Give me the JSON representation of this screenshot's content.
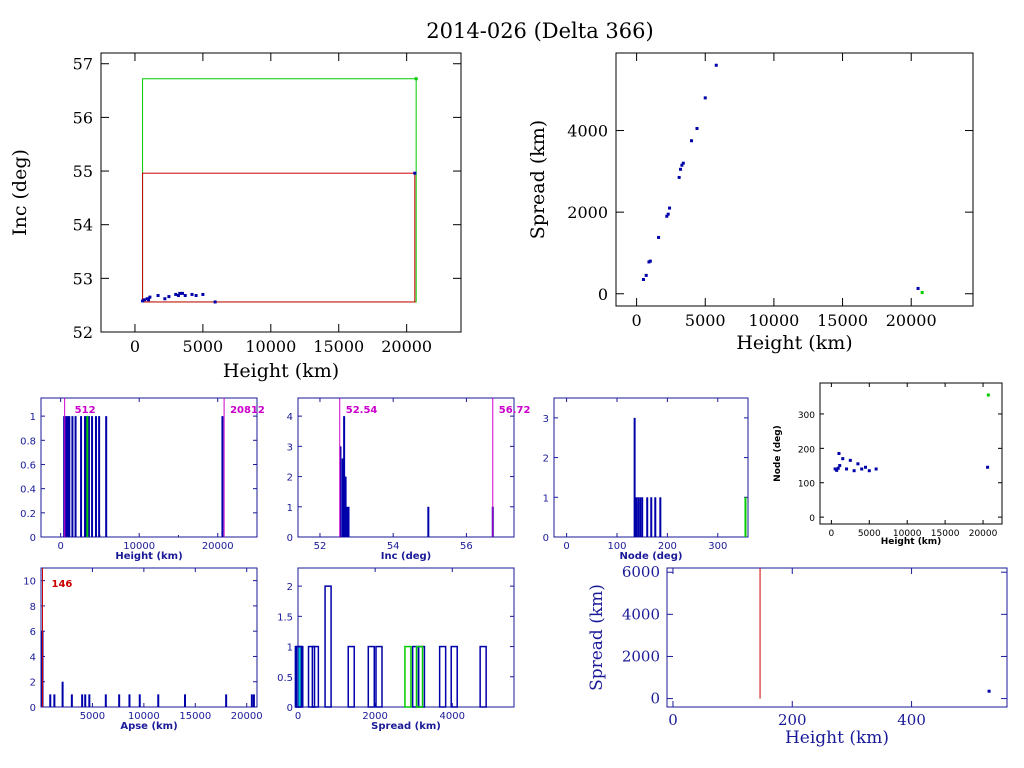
{
  "title": "2014-026 (Delta 366)",
  "colors": {
    "blue": "#0000aa",
    "red": "#cc0000",
    "green": "#00cc00",
    "magenta": "#cc00cc",
    "cyan": "#00cccc",
    "axis_blue": "#1a1a99"
  },
  "chart_data": [
    {
      "id": "inc_vs_height",
      "type": "scatter",
      "xlabel": "Height (km)",
      "ylabel": "Inc (deg)",
      "xlim": [
        -2500,
        24000
      ],
      "ylim": [
        52,
        57.2
      ],
      "xticks": [
        0,
        5000,
        10000,
        15000,
        20000
      ],
      "yticks": [
        52,
        53,
        54,
        55,
        56,
        57
      ],
      "points": [
        [
          560,
          52.58
        ],
        [
          700,
          52.6
        ],
        [
          900,
          52.62
        ],
        [
          1000,
          52.6
        ],
        [
          1100,
          52.65
        ],
        [
          1700,
          52.68
        ],
        [
          2200,
          52.62
        ],
        [
          2500,
          52.66
        ],
        [
          3000,
          52.7
        ],
        [
          3200,
          52.68
        ],
        [
          3300,
          52.72
        ],
        [
          3500,
          52.72
        ],
        [
          3700,
          52.68
        ],
        [
          4200,
          52.7
        ],
        [
          4500,
          52.68
        ],
        [
          5000,
          52.7
        ],
        [
          5900,
          52.56
        ],
        [
          20600,
          54.96
        ]
      ],
      "green_points": [
        [
          20700,
          56.72
        ]
      ],
      "red_box": {
        "x": [
          560,
          20600
        ],
        "y": [
          52.56,
          54.96
        ]
      },
      "green_box": {
        "x": [
          560,
          20700
        ],
        "y": [
          52.56,
          56.72
        ]
      }
    },
    {
      "id": "spread_vs_height",
      "type": "scatter",
      "xlabel": "Height (km)",
      "ylabel": "Spread (km)",
      "xlim": [
        -1500,
        24500
      ],
      "ylim": [
        -300,
        5900
      ],
      "xticks": [
        0,
        5000,
        10000,
        15000,
        20000
      ],
      "yticks": [
        0,
        2000,
        4000
      ],
      "points": [
        [
          500,
          350
        ],
        [
          700,
          450
        ],
        [
          900,
          780
        ],
        [
          1000,
          800
        ],
        [
          1600,
          1380
        ],
        [
          2200,
          1900
        ],
        [
          2300,
          1950
        ],
        [
          2400,
          2100
        ],
        [
          3100,
          2850
        ],
        [
          3200,
          3050
        ],
        [
          3300,
          3150
        ],
        [
          3400,
          3200
        ],
        [
          4000,
          3750
        ],
        [
          4400,
          4050
        ],
        [
          5000,
          4800
        ],
        [
          5800,
          5600
        ],
        [
          20500,
          130
        ]
      ],
      "green_points": [
        [
          20800,
          30
        ]
      ]
    },
    {
      "id": "height_hist",
      "type": "bar",
      "xlabel": "Height (km)",
      "xlim": [
        -2500,
        25000
      ],
      "ylim": [
        0,
        1.15
      ],
      "xticks": [
        0,
        10000,
        20000
      ],
      "xticks_minor": [
        5000,
        15000
      ],
      "yticks": [
        0,
        0.2,
        0.4,
        0.6,
        0.8,
        1
      ],
      "blue_bars": [
        450,
        700,
        900,
        1100,
        1500,
        1900,
        2600,
        3100,
        3300,
        3600,
        4000,
        4500,
        4900,
        5800,
        20600
      ],
      "green_bars": [
        3400
      ],
      "markers": [
        {
          "x": 512,
          "label": "512",
          "color": "#cc00cc"
        },
        {
          "x": 20812,
          "label": "20812",
          "color": "#cc00cc"
        }
      ]
    },
    {
      "id": "inc_hist",
      "type": "bar",
      "xlabel": "Inc (deg)",
      "xlim": [
        51.4,
        57.3
      ],
      "ylim": [
        0,
        4.6
      ],
      "xticks": [
        52,
        54,
        56
      ],
      "yticks": [
        0,
        1,
        2,
        3,
        4
      ],
      "bars": [
        {
          "x": 52.56,
          "h": 3
        },
        {
          "x": 52.62,
          "h": 2.6
        },
        {
          "x": 52.66,
          "h": 4
        },
        {
          "x": 52.7,
          "h": 2
        },
        {
          "x": 52.74,
          "h": 1
        },
        {
          "x": 52.78,
          "h": 1
        },
        {
          "x": 54.96,
          "h": 1
        },
        {
          "x": 56.72,
          "h": 1
        }
      ],
      "markers": [
        {
          "x": 52.54,
          "label": "52.54",
          "color": "#cc00cc"
        },
        {
          "x": 56.72,
          "label": "56.72",
          "color": "#cc00cc"
        }
      ]
    },
    {
      "id": "node_hist",
      "type": "bar",
      "xlabel": "Node (deg)",
      "xlim": [
        -25,
        360
      ],
      "ylim": [
        0,
        3.5
      ],
      "xticks": [
        0,
        100,
        200,
        300
      ],
      "yticks": [
        0,
        1,
        2,
        3
      ],
      "bars": [
        {
          "x": 135,
          "h": 3
        },
        {
          "x": 138,
          "h": 1
        },
        {
          "x": 142,
          "h": 1
        },
        {
          "x": 146,
          "h": 1
        },
        {
          "x": 150,
          "h": 1
        },
        {
          "x": 160,
          "h": 1
        },
        {
          "x": 168,
          "h": 1
        },
        {
          "x": 176,
          "h": 1
        },
        {
          "x": 186,
          "h": 1
        }
      ],
      "green_bars": [
        {
          "x": 355,
          "h": 1
        }
      ]
    },
    {
      "id": "node_vs_height",
      "type": "scatter",
      "xlabel": "Height (km)",
      "ylabel": "Node (deg)",
      "xlim": [
        -1500,
        22500
      ],
      "ylim": [
        -20,
        390
      ],
      "xticks": [
        0,
        5000,
        10000,
        15000,
        20000
      ],
      "yticks": [
        0,
        100,
        200,
        300
      ],
      "points": [
        [
          500,
          140
        ],
        [
          700,
          136
        ],
        [
          900,
          142
        ],
        [
          1000,
          185
        ],
        [
          1100,
          150
        ],
        [
          1500,
          170
        ],
        [
          2000,
          140
        ],
        [
          2500,
          165
        ],
        [
          3000,
          135
        ],
        [
          3500,
          155
        ],
        [
          4000,
          140
        ],
        [
          4500,
          145
        ],
        [
          5000,
          135
        ],
        [
          5900,
          140
        ],
        [
          20600,
          145
        ]
      ],
      "green_points": [
        [
          20700,
          355
        ]
      ]
    },
    {
      "id": "apse_hist",
      "type": "bar",
      "xlabel": "Apse (km)",
      "xlim": [
        0,
        21000
      ],
      "ylim": [
        0,
        11
      ],
      "xticks": [
        5000,
        10000,
        15000,
        20000
      ],
      "yticks": [
        0,
        2,
        4,
        6,
        8,
        10
      ],
      "bars": [
        {
          "x": 146,
          "h": 6
        },
        {
          "x": 900,
          "h": 1
        },
        {
          "x": 1300,
          "h": 1
        },
        {
          "x": 2100,
          "h": 2
        },
        {
          "x": 3000,
          "h": 1
        },
        {
          "x": 4000,
          "h": 1
        },
        {
          "x": 4300,
          "h": 1
        },
        {
          "x": 4700,
          "h": 1
        },
        {
          "x": 6300,
          "h": 1
        },
        {
          "x": 7600,
          "h": 1
        },
        {
          "x": 8600,
          "h": 1
        },
        {
          "x": 9600,
          "h": 1
        },
        {
          "x": 11400,
          "h": 1
        },
        {
          "x": 14000,
          "h": 1
        },
        {
          "x": 18000,
          "h": 1
        },
        {
          "x": 20500,
          "h": 1
        },
        {
          "x": 20700,
          "h": 1
        }
      ],
      "markers": [
        {
          "x": 146,
          "label": "146",
          "color": "#cc0000"
        }
      ]
    },
    {
      "id": "spread_hist",
      "type": "bar",
      "xlabel": "Spread (km)",
      "xlim": [
        0,
        5600
      ],
      "ylim": [
        0,
        2.3
      ],
      "xticks": [
        0,
        2000,
        4000
      ],
      "yticks": [
        0,
        0.5,
        1,
        1.5,
        2
      ],
      "bars": [
        {
          "x": 10,
          "h": 1
        },
        {
          "x": 40,
          "h": 1
        },
        {
          "x": 350,
          "h": 1
        },
        {
          "x": 450,
          "h": 1
        },
        {
          "x": 780,
          "h": 2
        },
        {
          "x": 1380,
          "h": 1
        },
        {
          "x": 1900,
          "h": 1
        },
        {
          "x": 2100,
          "h": 1
        },
        {
          "x": 3050,
          "h": 1
        },
        {
          "x": 3200,
          "h": 1
        },
        {
          "x": 3750,
          "h": 1
        },
        {
          "x": 4050,
          "h": 1
        },
        {
          "x": 4800,
          "h": 1
        }
      ],
      "green_bars": [
        {
          "x": 2850,
          "h": 1
        },
        {
          "x": 3150,
          "h": 1
        }
      ],
      "cyan_block": [
        0,
        130
      ]
    },
    {
      "id": "spread_vs_height_small",
      "type": "scatter",
      "xlabel": "Height (km)",
      "ylabel": "Spread (km)",
      "xlim": [
        -10,
        560
      ],
      "ylim": [
        -400,
        6200
      ],
      "xticks": [
        0,
        200,
        400
      ],
      "yticks": [
        0,
        2000,
        4000,
        6000
      ],
      "red_line": {
        "x": 146,
        "y": [
          0,
          6200
        ]
      },
      "points": [
        [
          530,
          350
        ]
      ]
    }
  ]
}
